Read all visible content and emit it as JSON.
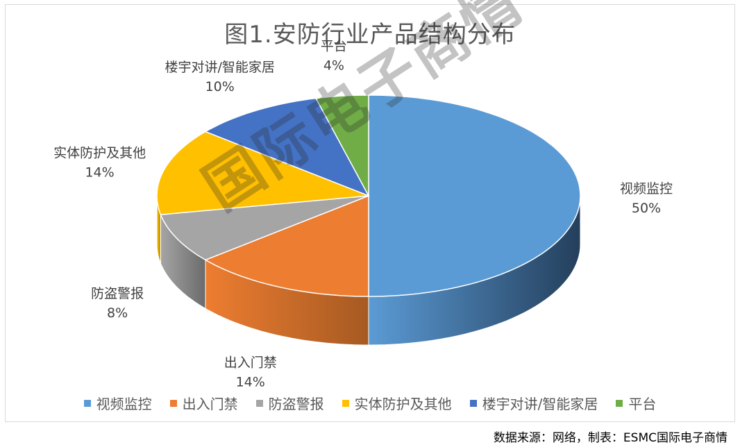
{
  "chart_data": {
    "type": "pie",
    "title": "图1.安防行业产品结构分布",
    "slices": [
      {
        "label": "视频监控",
        "value": 50,
        "value_label": "50%",
        "color": "#5b9bd5",
        "dark": "#243f5c"
      },
      {
        "label": "出入门禁",
        "value": 14,
        "value_label": "14%",
        "color": "#ed7d31",
        "dark": "#a65a22"
      },
      {
        "label": "防盗警报",
        "value": 8,
        "value_label": "8%",
        "color": "#a5a5a5",
        "dark": "#6b6b6b"
      },
      {
        "label": "实体防护及其他",
        "value": 14,
        "value_label": "14%",
        "color": "#ffc000",
        "dark": "#b38600"
      },
      {
        "label": "楼宇对讲/智能家居",
        "value": 10,
        "value_label": "10%",
        "color": "#4472c4",
        "dark": "#2e4f8a"
      },
      {
        "label": "平台",
        "value": 4,
        "value_label": "4%",
        "color": "#70ad47",
        "dark": "#4e7a31"
      }
    ],
    "legend_position": "bottom"
  },
  "watermark": "国际电子商情",
  "source": "数据来源：网络，制表：ESMC国际电子商情"
}
